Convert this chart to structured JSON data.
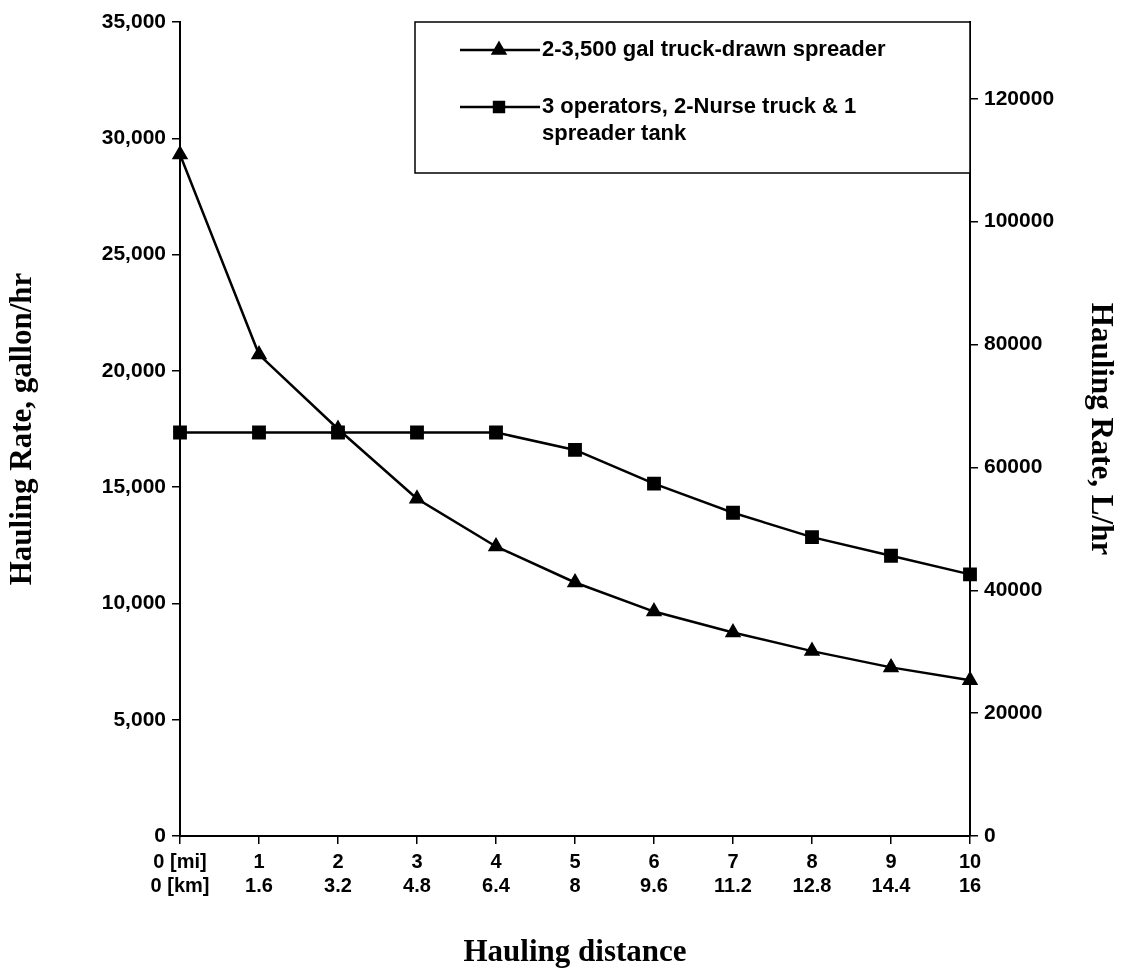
{
  "chart_data": {
    "type": "line",
    "xlabel": "Hauling distance",
    "ylabel": "Hauling Rate, gallon/hr",
    "y2label": "Hauling Rate, L/hr",
    "categories": [
      "0 [mi]\n0 [km]",
      "1\n1.6",
      "2\n3.2",
      "3\n4.8",
      "4\n6.4",
      "5\n8",
      "6\n9.6",
      "7\n11.2",
      "8\n12.8",
      "9\n14.4",
      "10\n16"
    ],
    "series": [
      {
        "name": "2-3,500 gal truck-drawn spreader",
        "color": "#000000",
        "marker": "triangle",
        "values": [
          29300,
          20700,
          17500,
          14500,
          12450,
          10900,
          9650,
          8750,
          7950,
          7250,
          6700
        ]
      },
      {
        "name": "3 operators, 2-Nurse truck & 1 spreader tank",
        "color": "#000000",
        "marker": "square",
        "values": [
          17350,
          17350,
          17350,
          17350,
          17350,
          16600,
          15150,
          13900,
          12850,
          12050,
          11250
        ]
      }
    ],
    "ylim": [
      0,
      35000
    ],
    "yticks": [
      {
        "value": 0,
        "label": "0"
      },
      {
        "value": 5000,
        "label": "5,000"
      },
      {
        "value": 10000,
        "label": "10,000"
      },
      {
        "value": 15000,
        "label": "15,000"
      },
      {
        "value": 20000,
        "label": "20,000"
      },
      {
        "value": 25000,
        "label": "25,000"
      },
      {
        "value": 30000,
        "label": "30,000"
      },
      {
        "value": 35000,
        "label": "35,000"
      }
    ],
    "y2lim": [
      0,
      132500
    ],
    "y2ticks": [
      0,
      20000,
      40000,
      60000,
      80000,
      100000,
      120000
    ],
    "grid": false,
    "legend": "top right",
    "line_style": "solid"
  }
}
